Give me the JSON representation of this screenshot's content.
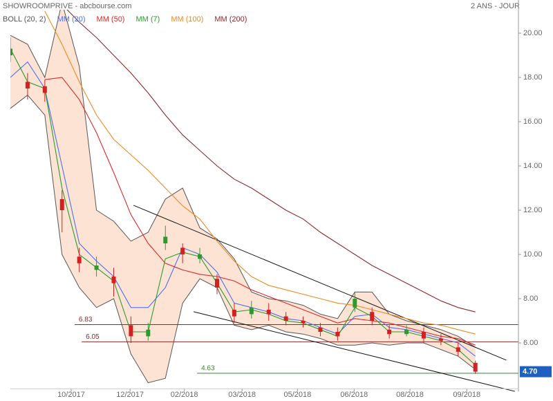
{
  "chart_data": {
    "type": "candlestick",
    "title": "SHOWROOMPRIVE - abcbourse.com",
    "subtitle": "2 ANS - JOUR",
    "x": [
      0,
      10,
      20,
      30,
      40,
      50,
      60,
      70,
      80,
      90,
      100,
      110,
      120,
      130,
      140,
      150,
      160,
      170,
      180,
      190,
      200,
      210,
      220,
      230,
      240,
      250,
      260,
      270
    ],
    "open": [
      19.0,
      17.8,
      17.6,
      12.5,
      9.9,
      9.3,
      9.0,
      6.8,
      6.3,
      10.5,
      10.3,
      9.8,
      8.9,
      7.5,
      7.3,
      7.5,
      7.2,
      7.0,
      6.7,
      6.5,
      7.6,
      7.4,
      6.6,
      6.4,
      6.5,
      6.2,
      5.8,
      5.1
    ],
    "high": [
      19.8,
      18.2,
      17.9,
      12.9,
      10.3,
      9.9,
      9.4,
      7.2,
      6.9,
      11.3,
      10.5,
      10.3,
      9.1,
      7.8,
      7.9,
      7.8,
      7.4,
      7.2,
      6.9,
      6.7,
      8.3,
      7.6,
      6.8,
      6.8,
      6.7,
      6.4,
      6.0,
      5.2
    ],
    "low": [
      18.7,
      17.0,
      16.9,
      11.0,
      9.2,
      9.0,
      8.1,
      6.0,
      6.1,
      10.2,
      9.6,
      9.6,
      8.2,
      6.9,
      7.1,
      7.0,
      6.8,
      6.7,
      6.3,
      6.1,
      7.4,
      6.8,
      6.2,
      6.3,
      6.0,
      5.9,
      5.4,
      4.6
    ],
    "close": [
      19.3,
      17.5,
      17.3,
      12.0,
      9.6,
      9.5,
      8.7,
      6.3,
      6.6,
      10.8,
      10.0,
      10.0,
      8.5,
      7.2,
      7.6,
      7.3,
      7.0,
      6.9,
      6.5,
      6.3,
      8.0,
      7.0,
      6.4,
      6.6,
      6.2,
      6.1,
      5.6,
      4.7
    ],
    "up_color": "#2e9a2e",
    "down_color": "#d42020",
    "bollinger": {
      "name": "BOLL (20, 2)",
      "color": "#555555",
      "fill": "#fde3d3",
      "upper": [
        19.9,
        19.5,
        18.0,
        21.4,
        18.5,
        12.0,
        11.5,
        10.6,
        11.0,
        12.5,
        13.0,
        11.2,
        10.7,
        9.8,
        8.3,
        8.0,
        7.9,
        7.7,
        7.3,
        7.1,
        8.3,
        8.3,
        7.3,
        7.0,
        6.8,
        6.6,
        6.3,
        5.8
      ],
      "lower": [
        16.6,
        17.2,
        16.3,
        10.0,
        8.5,
        7.6,
        8.0,
        5.5,
        4.2,
        4.4,
        7.8,
        8.9,
        8.5,
        6.8,
        6.6,
        6.8,
        6.5,
        6.4,
        6.2,
        5.9,
        5.9,
        6.0,
        5.9,
        6.0,
        6.0,
        5.7,
        5.4,
        4.8
      ]
    },
    "series": [
      {
        "name": "MM (20)",
        "color": "#4f6fe8",
        "values": [
          18.0,
          18.7,
          17.5,
          14.0,
          10.5,
          9.7,
          9.0,
          7.6,
          7.6,
          8.5,
          10.3,
          10.0,
          9.2,
          7.8,
          7.6,
          7.4,
          7.1,
          7.0,
          6.7,
          6.4,
          7.2,
          7.3,
          6.7,
          6.6,
          6.4,
          6.2,
          6.0,
          5.4
        ]
      },
      {
        "name": "MM (50)",
        "color": "#e02828",
        "values": [
          null,
          null,
          17.9,
          18.0,
          17.0,
          15.5,
          13.7,
          11.8,
          10.5,
          9.6,
          9.3,
          9.1,
          9.0,
          8.8,
          8.4,
          8.1,
          7.8,
          7.5,
          7.2,
          6.9,
          7.1,
          7.0,
          6.9,
          6.7,
          6.5,
          6.3,
          6.2,
          5.9
        ]
      },
      {
        "name": "MM (7)",
        "color": "#2a9a2a",
        "values": [
          19.3,
          17.8,
          17.5,
          13.0,
          10.0,
          9.4,
          8.8,
          6.5,
          6.5,
          9.8,
          10.1,
          9.9,
          8.7,
          7.4,
          7.5,
          7.3,
          7.0,
          6.9,
          6.6,
          6.3,
          7.6,
          7.2,
          6.5,
          6.5,
          6.3,
          6.1,
          5.7,
          5.0
        ]
      },
      {
        "name": "MM (100)",
        "color": "#f08a20",
        "values": [
          null,
          null,
          21.0,
          19.5,
          17.8,
          16.3,
          15.2,
          14.5,
          13.8,
          13.0,
          12.2,
          11.6,
          10.6,
          9.7,
          9.0,
          8.6,
          8.4,
          8.2,
          8.0,
          7.8,
          7.7,
          7.5,
          7.3,
          7.1,
          6.9,
          6.8,
          6.6,
          6.4
        ]
      },
      {
        "name": "MM (200)",
        "color": "#8b2a2a",
        "values": [
          null,
          null,
          null,
          21.3,
          20.5,
          19.8,
          19.0,
          18.2,
          17.3,
          16.3,
          15.4,
          14.7,
          14.0,
          13.4,
          13.0,
          12.5,
          12.0,
          11.6,
          11.0,
          10.5,
          10.0,
          9.5,
          9.1,
          8.7,
          8.3,
          7.9,
          7.6,
          7.4
        ]
      }
    ],
    "levels": [
      {
        "value": 6.83,
        "x_start": 37.3,
        "color": "#8b2a2a"
      },
      {
        "value": 6.05,
        "x_start": 41.4,
        "color": "#8b2a2a"
      },
      {
        "value": 4.63,
        "x_start": 108.4,
        "color": "#2a8a2a"
      }
    ],
    "trendlines": [
      {
        "x": [
          71.5,
          288
        ],
        "y": [
          12.22,
          5.22
        ]
      },
      {
        "x": [
          106.4,
          293
        ],
        "y": [
          7.41,
          3.81
        ]
      }
    ],
    "price_tag": {
      "value": 4.7,
      "label": "4.70",
      "color": "#1f5fbf"
    },
    "xlim": [
      0,
      295
    ],
    "ylim": [
      3.8,
      21.5
    ],
    "xticks": [
      {
        "value": 35.3,
        "label": "10/2017"
      },
      {
        "value": 69.5,
        "label": "12/2017"
      },
      {
        "value": 101,
        "label": "02/2018"
      },
      {
        "value": 134.5,
        "label": "03/2018"
      },
      {
        "value": 166.7,
        "label": "05/2018"
      },
      {
        "value": 199.6,
        "label": "06/2018"
      },
      {
        "value": 232,
        "label": "08/2018"
      },
      {
        "value": 265,
        "label": "09/2018"
      }
    ],
    "yticks": [
      {
        "value": 6,
        "label": "6.00"
      },
      {
        "value": 8,
        "label": "8.00"
      },
      {
        "value": 10,
        "label": "10.00"
      },
      {
        "value": 12,
        "label": "12.00"
      },
      {
        "value": 14,
        "label": "14.00"
      },
      {
        "value": 16,
        "label": "16.00"
      },
      {
        "value": 18,
        "label": "18.00"
      },
      {
        "value": 20,
        "label": "20.00"
      }
    ],
    "grid": false
  }
}
